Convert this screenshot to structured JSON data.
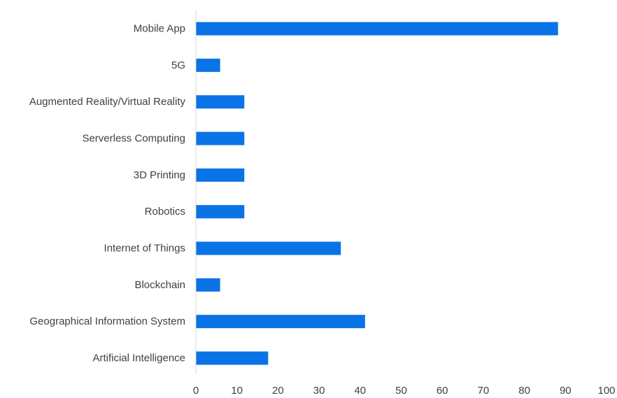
{
  "chart_data": {
    "type": "bar",
    "orientation": "horizontal",
    "categories": [
      "Mobile App",
      "5G",
      "Augmented Reality/Virtual Reality",
      "Serverless Computing",
      "3D Printing",
      "Robotics",
      "Internet of Things",
      "Blockchain",
      "Geographical Information System",
      "Artificial Intelligence"
    ],
    "values": [
      88.2,
      5.9,
      11.8,
      11.8,
      11.8,
      11.8,
      35.3,
      5.9,
      41.2,
      17.6
    ],
    "xlim": [
      0,
      100
    ],
    "xticks": [
      0,
      10,
      20,
      30,
      40,
      50,
      60,
      70,
      80,
      90,
      100
    ],
    "grid": false,
    "bar_color": "#0a73e6",
    "axis_color": "#d9d9d9",
    "label_color": "#404040"
  }
}
